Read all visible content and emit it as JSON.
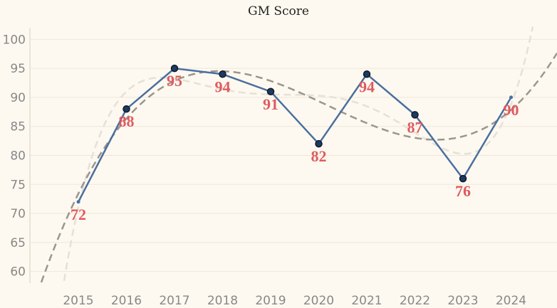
{
  "chart_data": {
    "type": "line",
    "title": "GM Score",
    "xlabel": "",
    "ylabel": "",
    "x": [
      "2015",
      "2016",
      "2017",
      "2018",
      "2019",
      "2020",
      "2021",
      "2022",
      "2023",
      "2024"
    ],
    "values": [
      72,
      88,
      95,
      94,
      91,
      82,
      94,
      87,
      76,
      90
    ],
    "y_ticks": [
      60,
      65,
      70,
      75,
      80,
      85,
      90,
      95,
      100
    ],
    "ylim": [
      58,
      102
    ],
    "grid": true,
    "colors": {
      "line": "#4a6fa0",
      "marker": "#1e3a5f",
      "labels": "#e05a5f",
      "trend_dark": "#9b968d",
      "trend_light": "#e6e1d7"
    }
  }
}
